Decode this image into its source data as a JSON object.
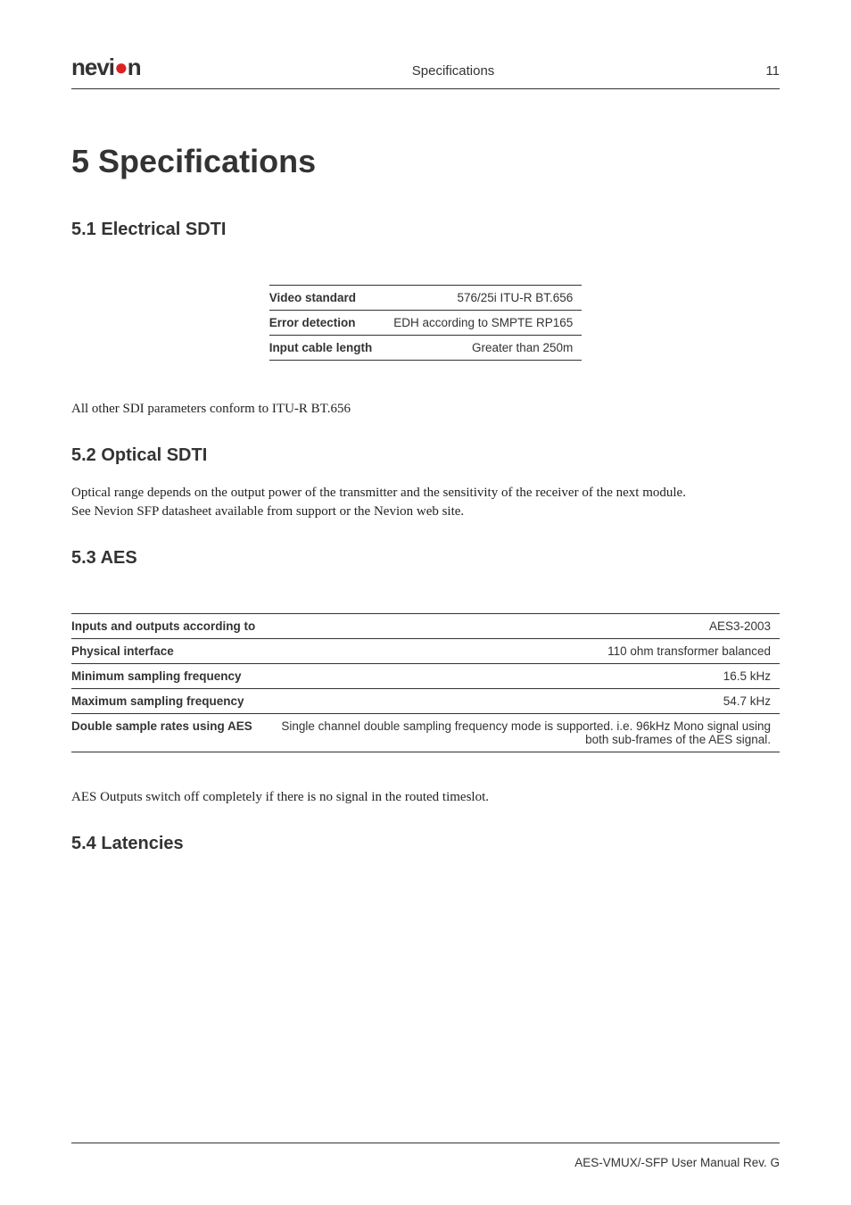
{
  "header": {
    "logo_prefix": "nevi",
    "logo_suffix": "n",
    "center": "Specifications",
    "page_number": "11"
  },
  "chapter": {
    "number": "5",
    "title": "Specifications",
    "full": "5   Specifications"
  },
  "sections": {
    "s1": {
      "heading": "5.1  Electrical SDTI"
    },
    "s2": {
      "heading": "5.2  Optical SDTI"
    },
    "s3": {
      "heading": "5.3  AES"
    },
    "s4": {
      "heading": "5.4  Latencies"
    }
  },
  "table_sdti": {
    "rows": [
      {
        "label": "Video standard",
        "value": "576/25i ITU-R BT.656"
      },
      {
        "label": "Error detection",
        "value": "EDH according to SMPTE RP165"
      },
      {
        "label": "Input cable length",
        "value": "Greater than 250m"
      }
    ]
  },
  "paragraphs": {
    "sdi_conform": "All other SDI parameters conform to ITU-R BT.656",
    "optical_1": "Optical range depends on the output power of the transmitter and the sensitivity of the receiver of the next module.",
    "optical_2": "See Nevion SFP datasheet available from support or the Nevion web site.",
    "aes_switch": "AES Outputs switch off completely if there is no signal in the routed timeslot."
  },
  "table_aes": {
    "rows": [
      {
        "label": "Inputs and outputs according to",
        "value": "AES3-2003"
      },
      {
        "label": "Physical interface",
        "value": "110 ohm transformer balanced"
      },
      {
        "label": "Minimum sampling frequency",
        "value": "16.5 kHz"
      },
      {
        "label": "Maximum sampling frequency",
        "value": "54.7 kHz"
      },
      {
        "label": "Double sample rates using AES",
        "value": "Single channel double sampling frequency mode is supported. i.e. 96kHz Mono signal using both sub-frames of the AES signal."
      }
    ]
  },
  "footer": {
    "text": "AES-VMUX/-SFP User Manual Rev. G"
  },
  "colors": {
    "text": "#333333",
    "rule": "#333333",
    "accent_red": "#dd2222",
    "background": "#ffffff"
  },
  "fonts": {
    "sans": "Arial, Helvetica, sans-serif",
    "serif": "Georgia, 'Times New Roman', serif",
    "chapter_size_pt": 27,
    "section_size_pt": 15,
    "body_size_pt": 11,
    "table_size_pt": 10
  }
}
